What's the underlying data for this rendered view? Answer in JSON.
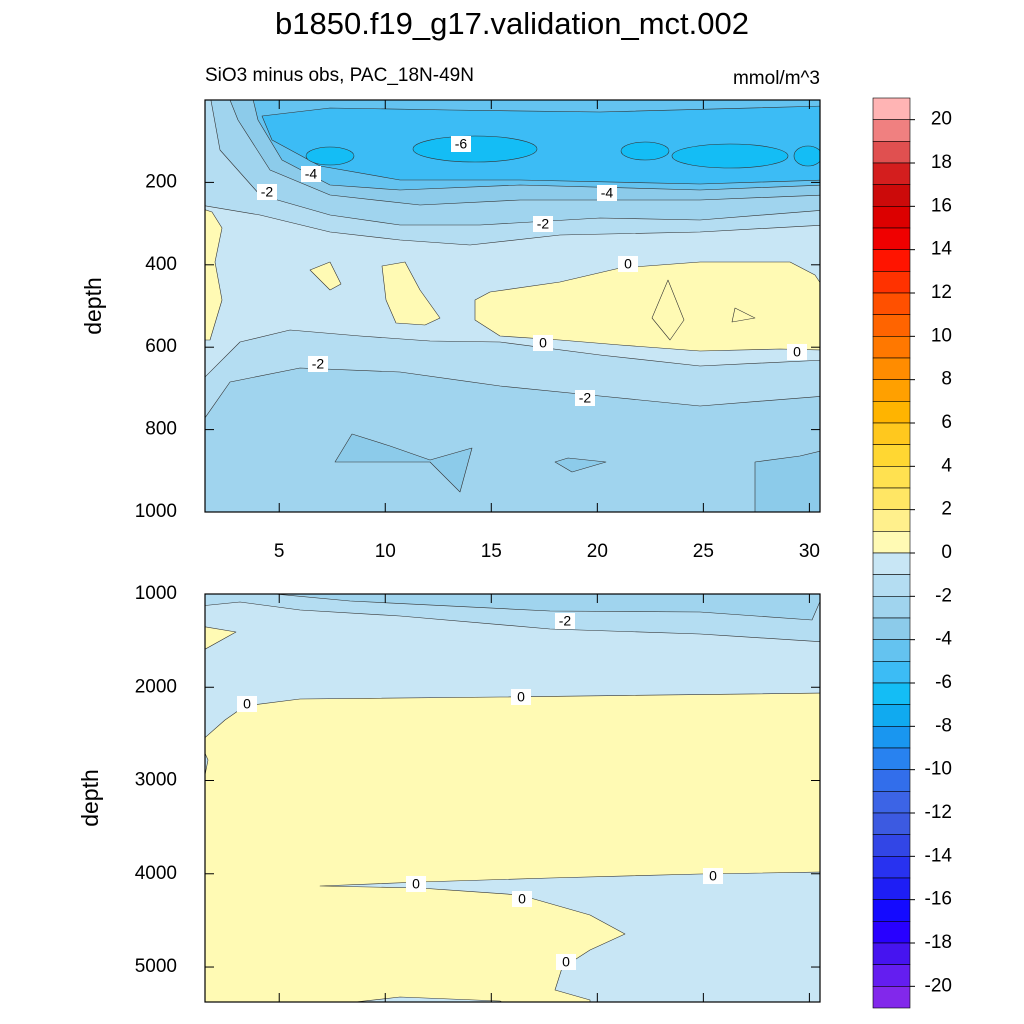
{
  "chart_data": [
    {
      "type": "contour",
      "title": "b1850.f19_g17.validation_mct.002",
      "subtitle": "SiO3 minus obs, PAC_18N-49N",
      "units": "mmol/m^3",
      "ylabel": "depth",
      "xlim": [
        1.5,
        30.5
      ],
      "xticks": [
        5,
        10,
        15,
        20,
        25,
        30
      ],
      "ylim": [
        0,
        1000
      ],
      "yticks": [
        200,
        400,
        600,
        800,
        1000
      ],
      "y_inverted": true,
      "contour_labels": [
        -6,
        -4,
        -2,
        -4,
        -2,
        0,
        0,
        0,
        -2,
        -2
      ]
    },
    {
      "type": "contour",
      "ylabel": "depth",
      "xlim": [
        1.5,
        30.5
      ],
      "ylim": [
        1000,
        5375
      ],
      "yticks": [
        1000,
        2000,
        3000,
        4000,
        5000
      ],
      "y_inverted": true,
      "contour_labels": [
        -2,
        0,
        0,
        0,
        0,
        0,
        0
      ]
    }
  ],
  "colorbar": {
    "ticks": [
      20,
      18,
      16,
      14,
      12,
      10,
      8,
      6,
      4,
      2,
      0,
      -2,
      -4,
      -6,
      -8,
      -10,
      -12,
      -14,
      -16,
      -18,
      -20
    ],
    "colors": [
      "#ffb4b4",
      "#f08080",
      "#e05050",
      "#d41e1e",
      "#cc0a0a",
      "#dc0000",
      "#f00000",
      "#ff1400",
      "#ff3200",
      "#ff5000",
      "#ff6400",
      "#ff7800",
      "#ff8c00",
      "#ffa000",
      "#ffb400",
      "#ffc81e",
      "#ffd732",
      "#ffe150",
      "#ffe664",
      "#fff08c",
      "#fffab4",
      "#c8e6f5",
      "#b4ddf2",
      "#a0d4ee",
      "#8ccbea",
      "#64c3f0",
      "#3cbcf5",
      "#14bdf5",
      "#10aaf0",
      "#1996f0",
      "#2882f0",
      "#326eeb",
      "#3c64e6",
      "#3c5ae1",
      "#3246e6",
      "#2832f0",
      "#1e1ef5",
      "#140aff",
      "#2800ff",
      "#4614f0",
      "#641ef0",
      "#8228eb"
    ]
  }
}
